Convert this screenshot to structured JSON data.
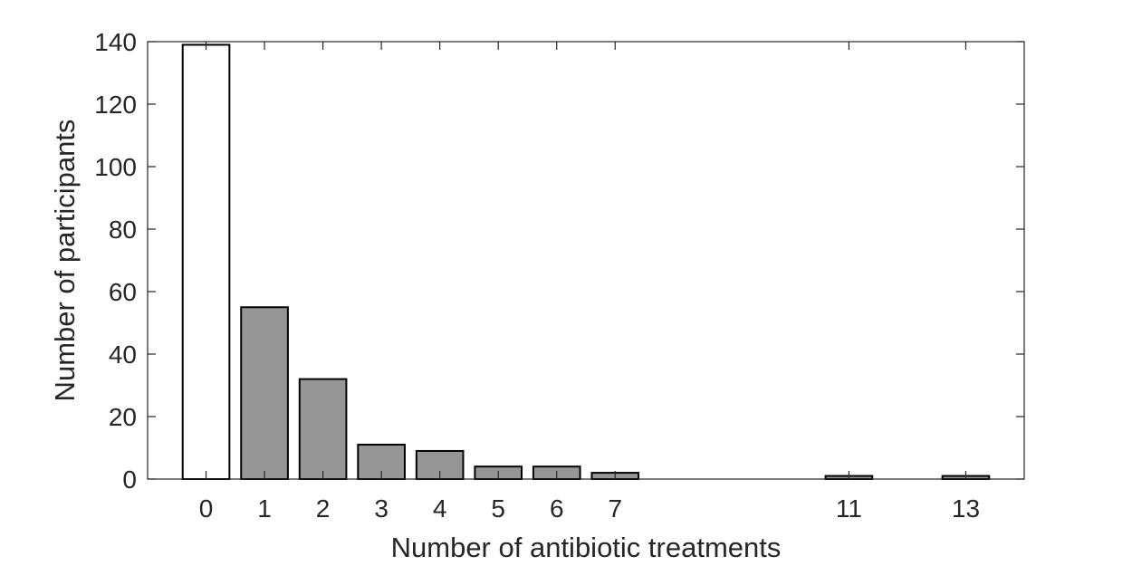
{
  "chart_data": {
    "type": "bar",
    "title": "",
    "xlabel": "Number of antibiotic treatments",
    "ylabel": "Number of participants",
    "x": [
      0,
      1,
      2,
      3,
      4,
      5,
      6,
      7,
      11,
      13
    ],
    "x_tick_labels": [
      "0",
      "1",
      "2",
      "3",
      "4",
      "5",
      "6",
      "7",
      "11",
      "13"
    ],
    "values": [
      139,
      55,
      32,
      11,
      9,
      4,
      4,
      2,
      1,
      1
    ],
    "xlim": [
      -1,
      14
    ],
    "ylim": [
      0,
      140
    ],
    "y_ticks": [
      0,
      20,
      40,
      60,
      80,
      100,
      120,
      140
    ],
    "grid": false,
    "colors": {
      "first_bar": "#ffffff",
      "other_bars": "#969696",
      "edge": "#000000",
      "axes": "#262626"
    }
  }
}
